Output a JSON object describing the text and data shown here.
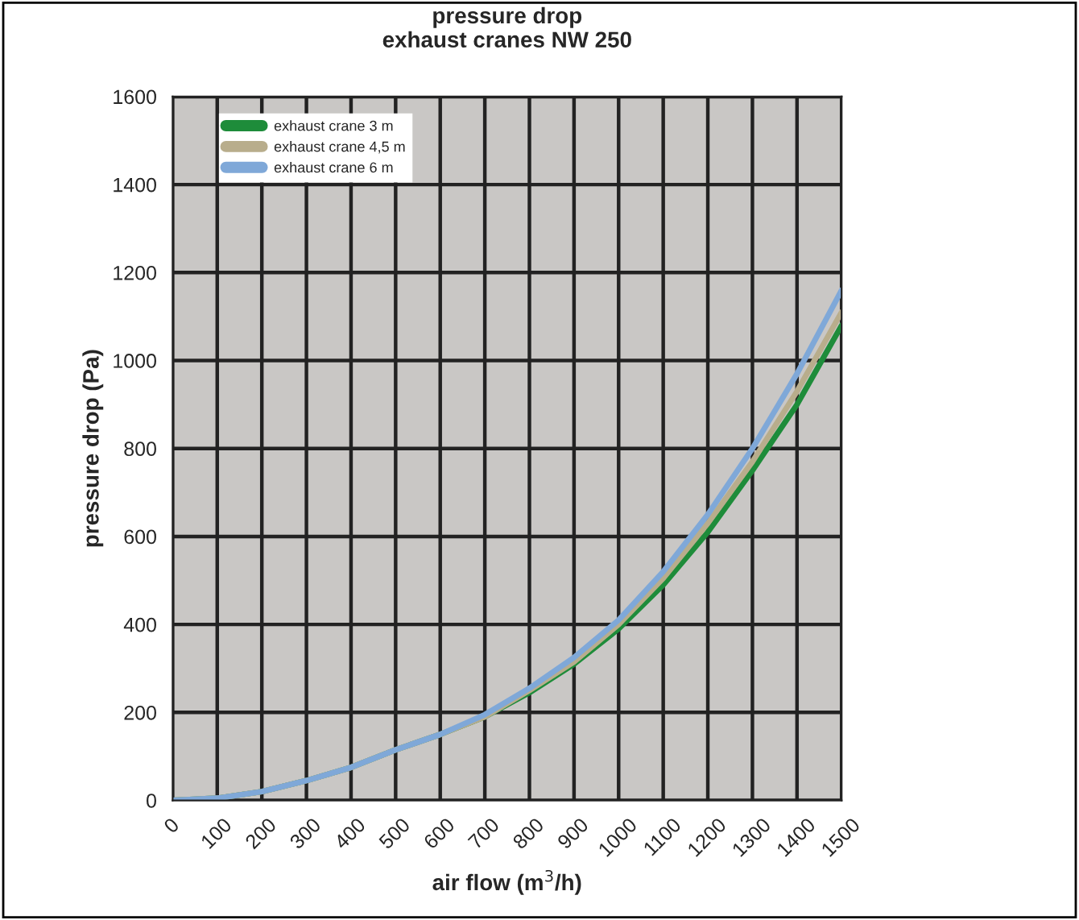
{
  "chart_data": {
    "type": "line",
    "title": "pressure drop\nexhaust cranes NW 250",
    "xlabel": "air flow (m$^{3}$/h)",
    "ylabel": "pressure drop (Pa)",
    "x": [
      0,
      100,
      200,
      300,
      400,
      500,
      600,
      700,
      800,
      900,
      1000,
      1100,
      1200,
      1300,
      1400,
      1500
    ],
    "series": [
      {
        "name": "exhaust crane 3 m",
        "color": "#1e8c3a",
        "values": [
          0,
          5,
          20,
          45,
          75,
          115,
          150,
          190,
          245,
          310,
          390,
          490,
          610,
          750,
          900,
          1080
        ]
      },
      {
        "name": "exhaust crane 4,5 m",
        "color": "#b8ad8c",
        "values": [
          0,
          5,
          20,
          45,
          75,
          115,
          150,
          190,
          250,
          315,
          400,
          505,
          630,
          770,
          930,
          1110
        ]
      },
      {
        "name": "exhaust crane 6 m",
        "color": "#7fa8d8",
        "values": [
          0,
          5,
          20,
          45,
          75,
          115,
          150,
          195,
          255,
          325,
          410,
          520,
          650,
          800,
          970,
          1160
        ]
      }
    ],
    "xlim": [
      0,
      1500
    ],
    "ylim": [
      0,
      1600
    ],
    "xticks": [
      0,
      100,
      200,
      300,
      400,
      500,
      600,
      700,
      800,
      900,
      1000,
      1100,
      1200,
      1300,
      1400,
      1500
    ],
    "yticks": [
      0,
      200,
      400,
      600,
      800,
      1000,
      1200,
      1400,
      1600
    ],
    "grid": true,
    "legend": "top left",
    "marker": "none",
    "line_style": "solid"
  }
}
